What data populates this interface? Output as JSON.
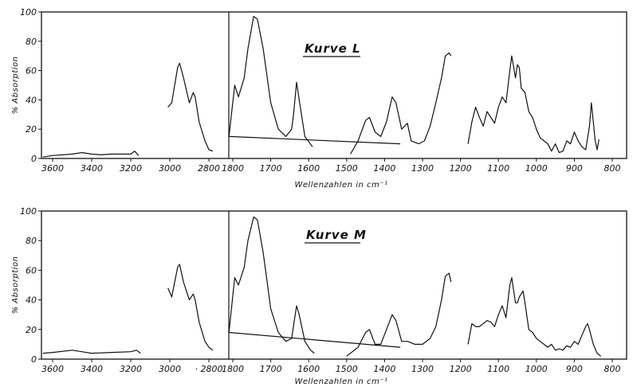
{
  "chart_data": [
    {
      "type": "line",
      "title": "Kurve L",
      "xlabel": "Wellenzahlen  in  cm⁻¹",
      "ylabel": "% Absorption",
      "xlim": [
        3650,
        790
      ],
      "ylim": [
        0,
        100
      ],
      "x_ticks": [
        3600,
        3400,
        3200,
        3000,
        2800,
        1800,
        1700,
        1600,
        1500,
        1400,
        1300,
        1200,
        1100,
        1000,
        900,
        800
      ],
      "x_tick_labels": [
        "3600",
        "3400",
        "3200",
        "3000",
        "2800",
        "1800",
        "1700",
        "1600",
        "1500",
        "1400",
        "1300",
        "1200",
        "1100",
        "1000",
        "900",
        "800"
      ],
      "y_ticks": [
        0,
        20,
        40,
        60,
        80,
        100
      ],
      "series": [
        {
          "values": [
            [
              3650,
              1
            ],
            [
              3600,
              2
            ],
            [
              3500,
              3
            ],
            [
              3450,
              4
            ],
            [
              3400,
              3
            ],
            [
              3350,
              2.5
            ],
            [
              3300,
              3
            ],
            [
              3200,
              3
            ],
            [
              3180,
              5
            ],
            [
              3160,
              2
            ]
          ]
        },
        {
          "values": [
            [
              3010,
              35
            ],
            [
              2990,
              38
            ],
            [
              2960,
              62
            ],
            [
              2950,
              65
            ],
            [
              2930,
              55
            ],
            [
              2900,
              38
            ],
            [
              2880,
              45
            ],
            [
              2870,
              42
            ],
            [
              2850,
              25
            ],
            [
              2820,
              12
            ],
            [
              2800,
              6
            ],
            [
              2780,
              5
            ]
          ]
        },
        {
          "values": [
            [
              1820,
              10
            ],
            [
              1810,
              15
            ],
            [
              1795,
              50
            ],
            [
              1785,
              42
            ],
            [
              1770,
              55
            ],
            [
              1760,
              75
            ],
            [
              1745,
              97
            ],
            [
              1735,
              95
            ],
            [
              1720,
              75
            ],
            [
              1700,
              38
            ],
            [
              1680,
              20
            ],
            [
              1660,
              15
            ],
            [
              1645,
              20
            ],
            [
              1640,
              30
            ],
            [
              1632,
              52
            ],
            [
              1625,
              40
            ],
            [
              1610,
              15
            ],
            [
              1590,
              8
            ]
          ]
        },
        {
          "values": [
            [
              1490,
              3
            ],
            [
              1470,
              12
            ],
            [
              1450,
              26
            ],
            [
              1440,
              28
            ],
            [
              1425,
              18
            ],
            [
              1410,
              15
            ],
            [
              1395,
              25
            ],
            [
              1380,
              42
            ],
            [
              1370,
              38
            ],
            [
              1355,
              20
            ],
            [
              1340,
              24
            ],
            [
              1330,
              12
            ],
            [
              1310,
              10
            ],
            [
              1295,
              12
            ],
            [
              1280,
              22
            ],
            [
              1265,
              38
            ],
            [
              1250,
              55
            ],
            [
              1240,
              70
            ],
            [
              1230,
              72
            ],
            [
              1225,
              70
            ]
          ]
        },
        {
          "values": [
            [
              1180,
              10
            ],
            [
              1170,
              25
            ],
            [
              1160,
              35
            ],
            [
              1150,
              28
            ],
            [
              1140,
              22
            ],
            [
              1130,
              32
            ],
            [
              1120,
              28
            ],
            [
              1110,
              24
            ],
            [
              1100,
              35
            ],
            [
              1090,
              42
            ],
            [
              1080,
              38
            ],
            [
              1070,
              60
            ],
            [
              1065,
              70
            ],
            [
              1055,
              55
            ],
            [
              1050,
              64
            ],
            [
              1045,
              62
            ],
            [
              1040,
              48
            ],
            [
              1030,
              45
            ],
            [
              1020,
              32
            ],
            [
              1010,
              28
            ],
            [
              1000,
              20
            ],
            [
              990,
              14
            ],
            [
              980,
              12
            ],
            [
              970,
              10
            ],
            [
              960,
              5
            ],
            [
              950,
              10
            ],
            [
              940,
              4
            ],
            [
              930,
              5
            ],
            [
              920,
              12
            ],
            [
              910,
              10
            ],
            [
              900,
              18
            ],
            [
              890,
              12
            ],
            [
              880,
              8
            ],
            [
              870,
              6
            ],
            [
              860,
              22
            ],
            [
              855,
              38
            ],
            [
              850,
              25
            ],
            [
              845,
              12
            ],
            [
              840,
              6
            ],
            [
              835,
              13
            ]
          ]
        }
      ]
    },
    {
      "type": "line",
      "title": "Kurve M",
      "xlabel": "Wellenzahlen  in  cm⁻¹",
      "ylabel": "% Absorption",
      "xlim": [
        3650,
        790
      ],
      "ylim": [
        0,
        100
      ],
      "x_ticks": [
        3600,
        3400,
        3200,
        3000,
        2800,
        1800,
        1700,
        1600,
        1500,
        1400,
        1300,
        1200,
        1100,
        1000,
        900,
        800
      ],
      "x_tick_labels": [
        "3600",
        "3400",
        "3200",
        "3000",
        "· 2800",
        "1800",
        "1700",
        "1600",
        "1500",
        "1400",
        "1300",
        "1200",
        "1100",
        "1000",
        "900",
        "800"
      ],
      "y_ticks": [
        0,
        20,
        40,
        60,
        80,
        100
      ],
      "series": [
        {
          "values": [
            [
              3650,
              4
            ],
            [
              3600,
              4.5
            ],
            [
              3500,
              6
            ],
            [
              3450,
              5
            ],
            [
              3400,
              4
            ],
            [
              3300,
              4.5
            ],
            [
              3200,
              5
            ],
            [
              3170,
              6
            ],
            [
              3150,
              4
            ]
          ]
        },
        {
          "values": [
            [
              3010,
              48
            ],
            [
              2990,
              42
            ],
            [
              2960,
              62
            ],
            [
              2950,
              64
            ],
            [
              2930,
              52
            ],
            [
              2900,
              40
            ],
            [
              2880,
              44
            ],
            [
              2870,
              40
            ],
            [
              2850,
              25
            ],
            [
              2820,
              12
            ],
            [
              2800,
              8
            ],
            [
              2780,
              6
            ]
          ]
        },
        {
          "values": [
            [
              1820,
              8
            ],
            [
              1810,
              18
            ],
            [
              1795,
              55
            ],
            [
              1785,
              50
            ],
            [
              1770,
              62
            ],
            [
              1760,
              80
            ],
            [
              1745,
              96
            ],
            [
              1735,
              94
            ],
            [
              1720,
              72
            ],
            [
              1700,
              34
            ],
            [
              1680,
              18
            ],
            [
              1660,
              12
            ],
            [
              1645,
              14
            ],
            [
              1632,
              36
            ],
            [
              1625,
              30
            ],
            [
              1610,
              12
            ],
            [
              1595,
              6
            ],
            [
              1585,
              4
            ]
          ]
        },
        {
          "values": [
            [
              1500,
              2
            ],
            [
              1470,
              8
            ],
            [
              1450,
              18
            ],
            [
              1440,
              20
            ],
            [
              1425,
              10
            ],
            [
              1410,
              10
            ],
            [
              1395,
              20
            ],
            [
              1380,
              30
            ],
            [
              1370,
              26
            ],
            [
              1355,
              12
            ],
            [
              1340,
              12
            ],
            [
              1320,
              10
            ],
            [
              1300,
              10
            ],
            [
              1280,
              14
            ],
            [
              1265,
              22
            ],
            [
              1250,
              40
            ],
            [
              1240,
              56
            ],
            [
              1230,
              58
            ],
            [
              1225,
              52
            ]
          ]
        },
        {
          "values": [
            [
              1180,
              10
            ],
            [
              1170,
              24
            ],
            [
              1160,
              22
            ],
            [
              1150,
              22
            ],
            [
              1140,
              24
            ],
            [
              1130,
              26
            ],
            [
              1120,
              25
            ],
            [
              1110,
              22
            ],
            [
              1100,
              30
            ],
            [
              1090,
              36
            ],
            [
              1080,
              28
            ],
            [
              1070,
              50
            ],
            [
              1065,
              55
            ],
            [
              1055,
              38
            ],
            [
              1050,
              38
            ],
            [
              1045,
              42
            ],
            [
              1035,
              46
            ],
            [
              1030,
              38
            ],
            [
              1020,
              20
            ],
            [
              1010,
              18
            ],
            [
              1000,
              14
            ],
            [
              990,
              12
            ],
            [
              980,
              10
            ],
            [
              970,
              8
            ],
            [
              960,
              10
            ],
            [
              950,
              6
            ],
            [
              940,
              7
            ],
            [
              930,
              6
            ],
            [
              920,
              9
            ],
            [
              910,
              8
            ],
            [
              900,
              12
            ],
            [
              890,
              10
            ],
            [
              880,
              16
            ],
            [
              870,
              22
            ],
            [
              865,
              24
            ],
            [
              860,
              20
            ],
            [
              850,
              10
            ],
            [
              840,
              4
            ],
            [
              830,
              2
            ]
          ]
        }
      ]
    }
  ]
}
